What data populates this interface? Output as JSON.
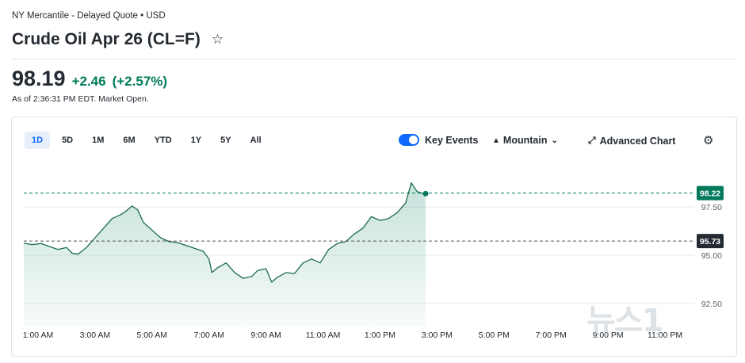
{
  "header": {
    "exchange": "NY Mercantile - Delayed Quote • USD",
    "title": "Crude Oil Apr 26 (CL=F)",
    "star_icon": "☆"
  },
  "quote": {
    "price": "98.19",
    "change": "+2.46",
    "change_pct": "(+2.57%)",
    "as_of": "As of 2:36:31 PM EDT. Market Open."
  },
  "ranges": [
    {
      "label": "1D",
      "active": true
    },
    {
      "label": "5D"
    },
    {
      "label": "1M"
    },
    {
      "label": "6M"
    },
    {
      "label": "YTD"
    },
    {
      "label": "1Y"
    },
    {
      "label": "5Y"
    },
    {
      "label": "All"
    }
  ],
  "tools": {
    "key_events": "Key Events",
    "chart_type": "Mountain",
    "advanced": "Advanced Chart"
  },
  "watermark": "뉴스1",
  "colors": {
    "up": "#007a5a",
    "line": "#1b6a4f",
    "ref": "#232a31",
    "accent": "#0f69ff"
  },
  "chart_data": {
    "type": "area",
    "x_unit": "hours (local time)",
    "x_ticks": [
      "1:00 AM",
      "3:00 AM",
      "5:00 AM",
      "7:00 AM",
      "9:00 AM",
      "11:00 AM",
      "1:00 PM",
      "3:00 PM",
      "5:00 PM",
      "7:00 PM",
      "9:00 PM",
      "11:00 PM"
    ],
    "x_tick_values": [
      1,
      3,
      5,
      7,
      9,
      11,
      13,
      15,
      17,
      19,
      21,
      23
    ],
    "xlim": [
      0.5,
      24.0
    ],
    "y_ticks": [
      "97.50",
      "95.00",
      "92.50"
    ],
    "y_tick_values": [
      97.5,
      95.0,
      92.5
    ],
    "ylim": [
      91.3,
      99.6
    ],
    "current_label": "98.22",
    "current_value": 98.22,
    "prev_close_label": "95.73",
    "prev_close_value": 95.73,
    "series": [
      {
        "x": [
          0.5,
          0.8,
          1.1,
          1.4,
          1.7,
          2.0,
          2.2,
          2.4,
          2.7,
          3.0,
          3.3,
          3.6,
          3.9,
          4.1,
          4.3,
          4.5,
          4.7,
          5.0,
          5.3,
          5.6,
          5.9,
          6.2,
          6.5,
          6.8,
          7.0,
          7.1,
          7.3,
          7.6,
          7.9,
          8.2,
          8.5,
          8.7,
          9.0,
          9.2,
          9.4,
          9.7,
          10.0,
          10.3,
          10.6,
          10.9,
          11.2,
          11.5,
          11.8,
          12.1,
          12.4,
          12.7,
          13.0,
          13.3,
          13.6,
          13.9,
          14.1,
          14.3,
          14.5,
          14.6
        ],
        "y": [
          95.62,
          95.55,
          95.6,
          95.45,
          95.3,
          95.4,
          95.1,
          95.05,
          95.4,
          95.9,
          96.4,
          96.9,
          97.1,
          97.3,
          97.55,
          97.35,
          96.7,
          96.3,
          95.9,
          95.7,
          95.65,
          95.5,
          95.35,
          95.2,
          94.8,
          94.1,
          94.35,
          94.6,
          94.1,
          93.8,
          93.9,
          94.2,
          94.3,
          93.6,
          93.85,
          94.1,
          94.05,
          94.6,
          94.8,
          94.6,
          95.3,
          95.6,
          95.7,
          96.1,
          96.4,
          97.0,
          96.8,
          96.9,
          97.2,
          97.7,
          98.75,
          98.3,
          98.2,
          98.19
        ]
      }
    ]
  }
}
